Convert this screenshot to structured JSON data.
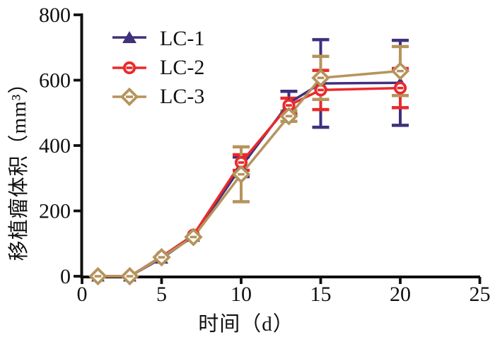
{
  "chart_data": {
    "type": "line",
    "title": "",
    "xlabel": "时间（d）",
    "ylabel": "移植瘤体积（mm³）",
    "xlim": [
      0,
      25
    ],
    "ylim": [
      0,
      800
    ],
    "xticks": [
      0,
      5,
      10,
      15,
      20,
      25
    ],
    "yticks": [
      0,
      200,
      400,
      600,
      800
    ],
    "grid": false,
    "legend_position": "top-left-inside",
    "x": [
      1,
      3,
      5,
      7,
      10,
      13,
      15,
      20
    ],
    "series": [
      {
        "name": "LC-1",
        "marker": "filled-triangle",
        "color": "#41307c",
        "values": [
          0,
          0,
          55,
          122,
          335,
          530,
          590,
          592
        ],
        "errors": [
          0,
          0,
          0,
          0,
          30,
          36,
          134,
          130
        ]
      },
      {
        "name": "LC-2",
        "marker": "open-circle-strikethrough",
        "color": "#ea2a2b",
        "values": [
          0,
          0,
          60,
          126,
          348,
          523,
          570,
          576
        ],
        "errors": [
          0,
          0,
          0,
          0,
          24,
          22,
          60,
          60
        ]
      },
      {
        "name": "LC-3",
        "marker": "open-diamond-strikethrough",
        "color": "#b5945c",
        "values": [
          0,
          0,
          58,
          120,
          312,
          490,
          607,
          628
        ],
        "errors": [
          0,
          0,
          0,
          0,
          84,
          16,
          66,
          75
        ]
      }
    ],
    "axis_color": "#0f0f0f",
    "background_color": "#ffffff"
  }
}
